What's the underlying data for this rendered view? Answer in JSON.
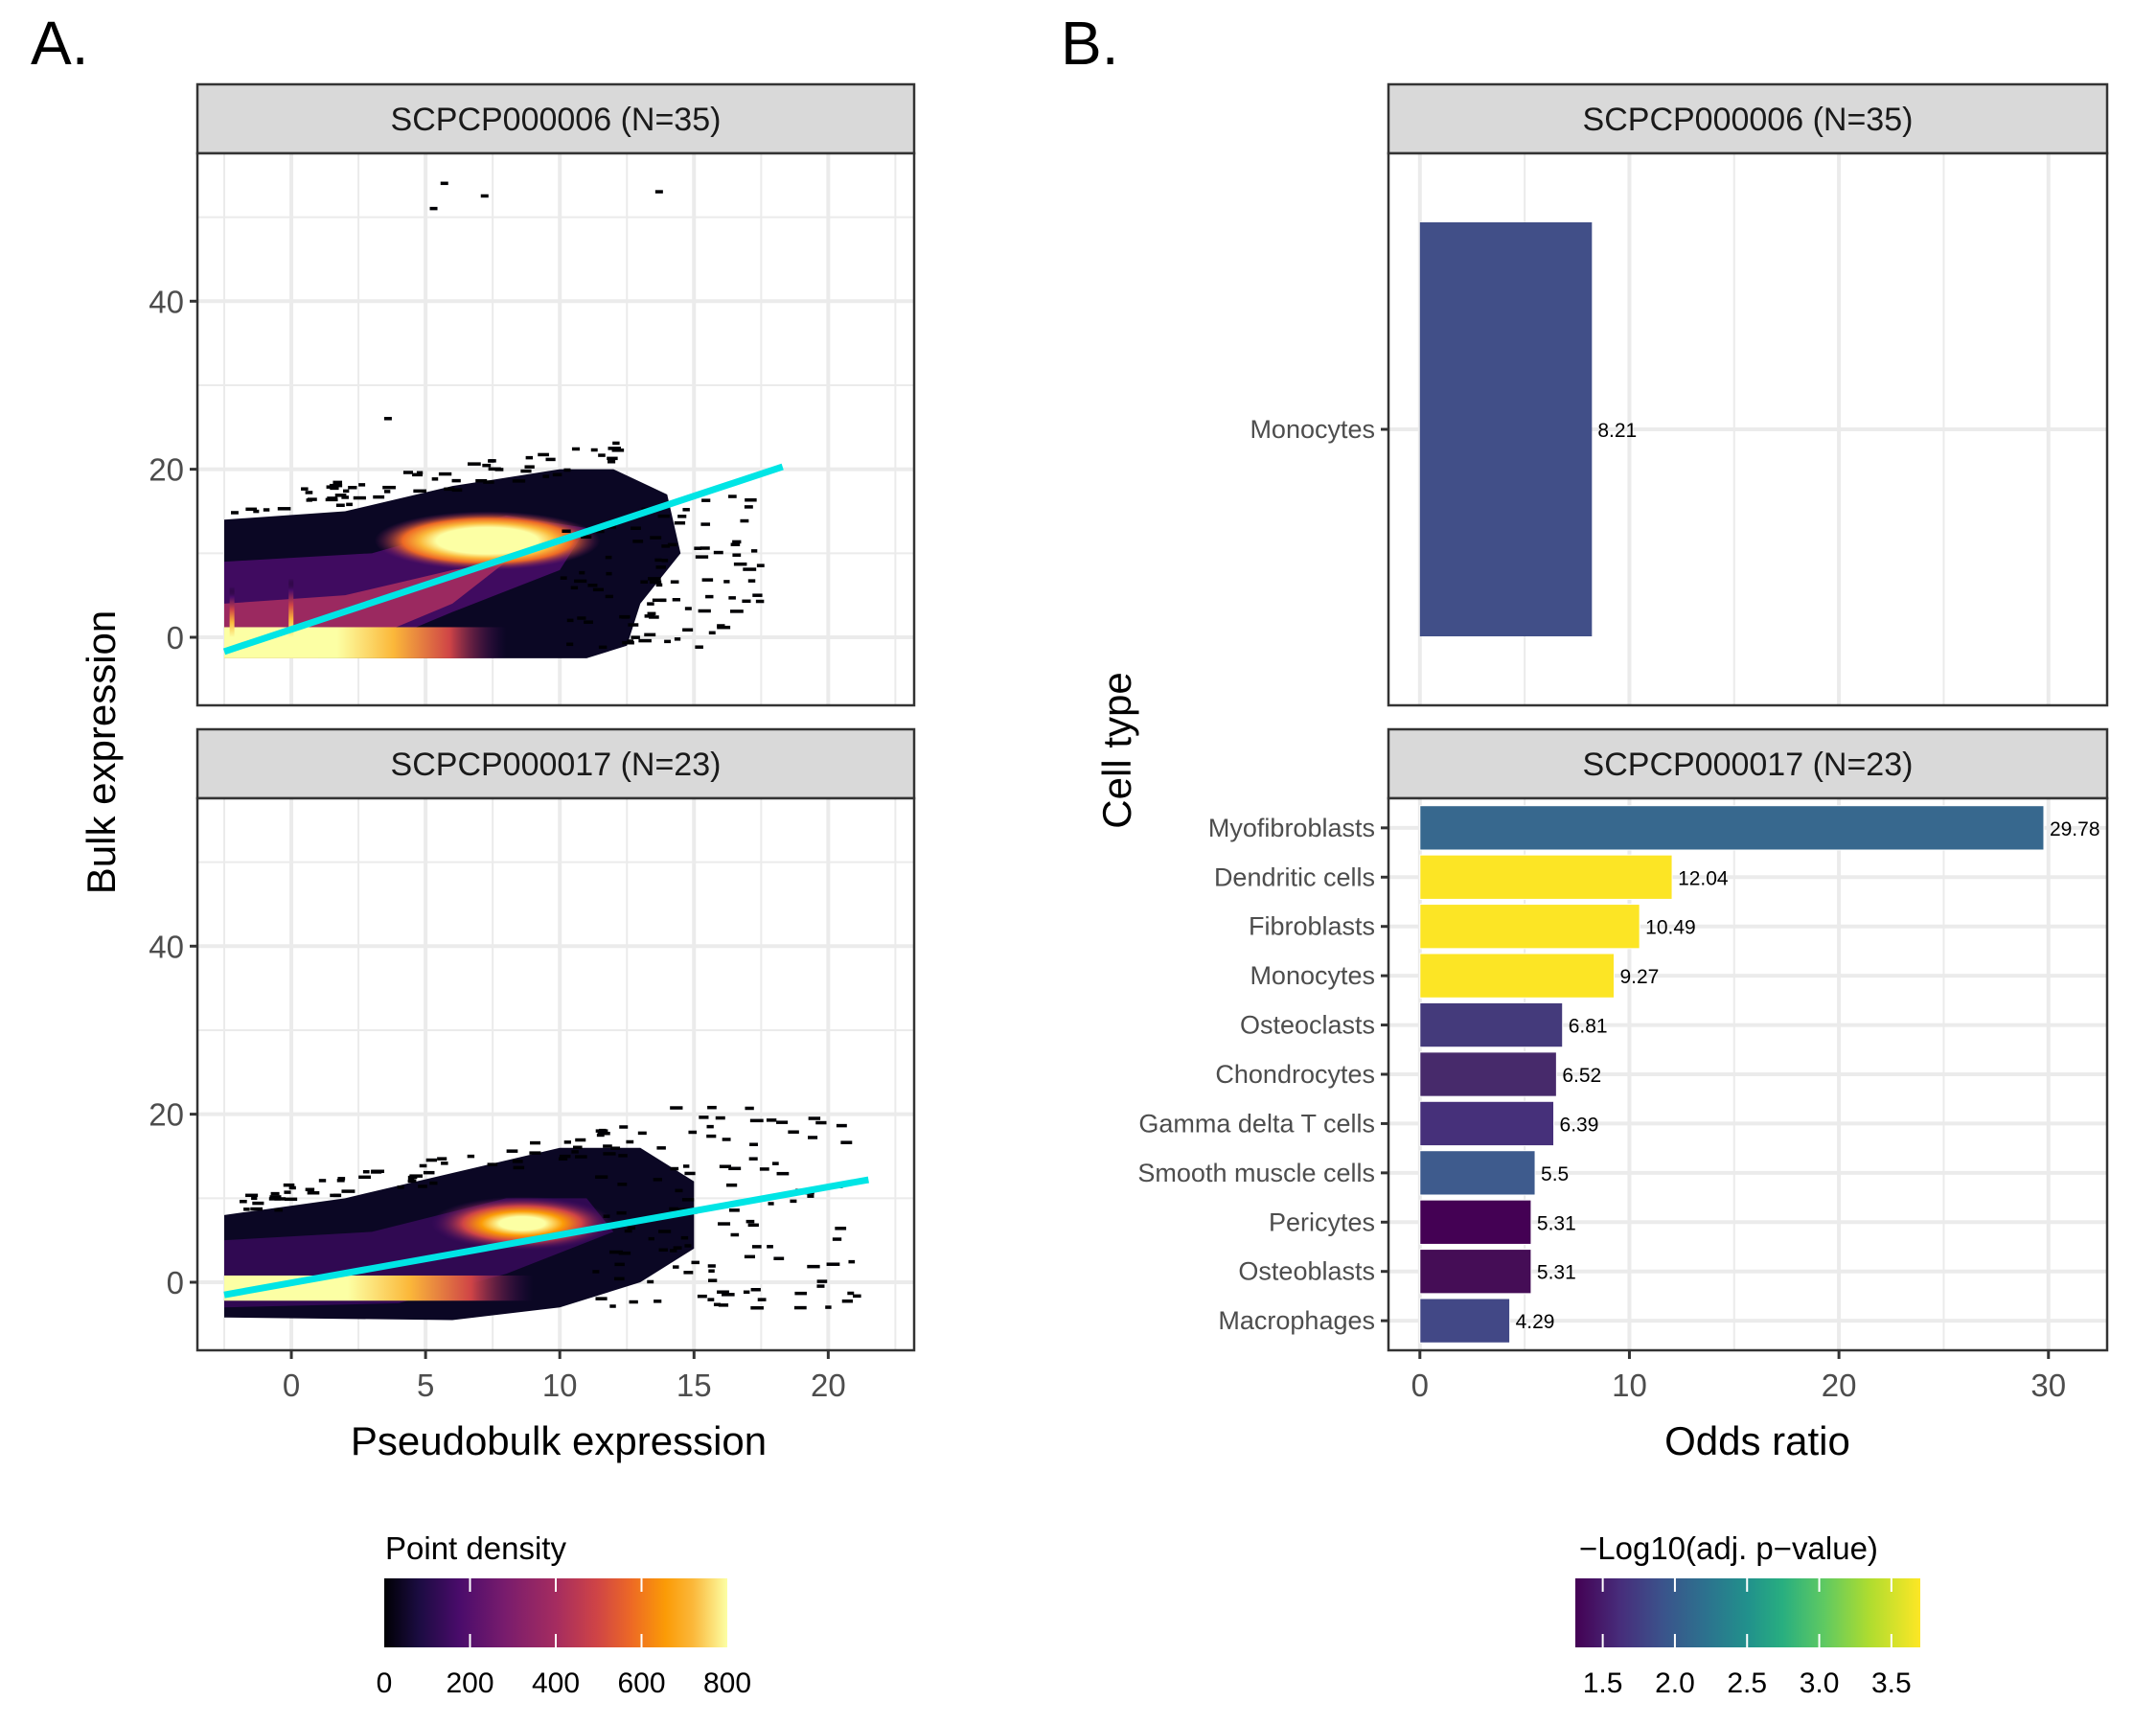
{
  "figure": {
    "panel_labels": [
      "A.",
      "B."
    ]
  },
  "chart_data": [
    {
      "type": "heatmap",
      "subtype": "2D point-density with linear regression",
      "panel": "A.",
      "xlabel": "Pseudobulk expression",
      "ylabel": "Bulk expression",
      "xlim": [
        -3.5,
        23.2
      ],
      "x_ticks": [
        0,
        5,
        10,
        15,
        20
      ],
      "x_tick_labels": [
        "0",
        "5",
        "10",
        "15",
        "20"
      ],
      "x_minor_ticks": [
        -2.5,
        2.5,
        7.5,
        12.5,
        17.5,
        22.5
      ],
      "y_ticks": [
        0,
        20,
        40
      ],
      "y_tick_labels": [
        "0",
        "20",
        "40"
      ],
      "y_minor_ticks": [
        10,
        30,
        50
      ],
      "grid": true,
      "legend": {
        "title": "Point density",
        "position": "bottom",
        "palette": "inferno",
        "range": [
          0,
          800
        ],
        "ticks": [
          0,
          200,
          400,
          600,
          800
        ],
        "tick_labels": [
          "0",
          "200",
          "400",
          "600",
          "800"
        ]
      },
      "facets": [
        {
          "title": "SCPCP000006 (N=35)",
          "ylim": [
            -8.1,
            57.6
          ],
          "regression_line": {
            "color": "#00E5E5",
            "x": [
              -2.5,
              18.3
            ],
            "y": [
              -1.7,
              20.3
            ]
          },
          "density_region": {
            "x_range": [
              -2.5,
              15
            ],
            "y_range": [
              -2.5,
              20
            ],
            "hotspots": [
              {
                "x": 8,
                "y": 12,
                "level": "high"
              },
              {
                "x": -2,
                "y": 0,
                "level": "high"
              },
              {
                "x": 4,
                "y": 0,
                "level": "medium"
              }
            ]
          },
          "outliers": [
            {
              "x": 5.7,
              "y": 54
            },
            {
              "x": 5.3,
              "y": 51
            },
            {
              "x": 7.2,
              "y": 52.5
            },
            {
              "x": 13.7,
              "y": 53
            },
            {
              "x": 3.6,
              "y": 26
            }
          ]
        },
        {
          "title": "SCPCP000017 (N=23)",
          "ylim": [
            -8.1,
            57.6
          ],
          "regression_line": {
            "color": "#00E5E5",
            "x": [
              -2.5,
              21.5
            ],
            "y": [
              -1.5,
              12.2
            ]
          },
          "density_region": {
            "x_range": [
              -2.5,
              15
            ],
            "y_range": [
              -4.5,
              14
            ],
            "hotspots": [
              {
                "x": 8.5,
                "y": 7,
                "level": "high"
              },
              {
                "x": 2,
                "y": -0.5,
                "level": "high"
              }
            ]
          },
          "outliers": []
        }
      ]
    },
    {
      "type": "bar",
      "orientation": "horizontal",
      "panel": "B.",
      "xlabel": "Odds ratio",
      "ylabel": "Cell type",
      "xlim": [
        -1.5,
        32.8
      ],
      "x_ticks": [
        0,
        10,
        20,
        30
      ],
      "x_tick_labels": [
        "0",
        "10",
        "20",
        "30"
      ],
      "x_minor_ticks": [
        5,
        15,
        25
      ],
      "grid": true,
      "legend": {
        "title": "−Log10(adj. p−value)",
        "position": "bottom",
        "palette": "viridis",
        "range": [
          1.31,
          3.7
        ],
        "ticks": [
          1.5,
          2.0,
          2.5,
          3.0,
          3.5
        ],
        "tick_labels": [
          "1.5",
          "2.0",
          "2.5",
          "3.0",
          "3.5"
        ]
      },
      "facets": [
        {
          "title": "SCPCP000006 (N=35)",
          "categories": [
            "Monocytes"
          ],
          "values": [
            8.21
          ],
          "labels": [
            "8.21"
          ],
          "colors": [
            "#414F88"
          ]
        },
        {
          "title": "SCPCP000017 (N=23)",
          "categories": [
            "Myofibroblasts",
            "Dendritic cells",
            "Fibroblasts",
            "Monocytes",
            "Osteoclasts",
            "Chondrocytes",
            "Gamma delta T cells",
            "Smooth muscle cells",
            "Pericytes",
            "Osteoblasts",
            "Macrophages"
          ],
          "values": [
            29.78,
            12.04,
            10.49,
            9.27,
            6.81,
            6.52,
            6.39,
            5.5,
            5.31,
            5.31,
            4.29
          ],
          "labels": [
            "29.78",
            "12.04",
            "10.49",
            "9.27",
            "6.81",
            "6.52",
            "6.39",
            "5.5",
            "5.31",
            "5.31",
            "4.29"
          ],
          "colors": [
            "#37688E",
            "#FCE525",
            "#FCE525",
            "#FCE525",
            "#443A7B",
            "#472A6B",
            "#46307A",
            "#3E5B8D",
            "#440154",
            "#450D56",
            "#424886"
          ]
        }
      ]
    }
  ]
}
